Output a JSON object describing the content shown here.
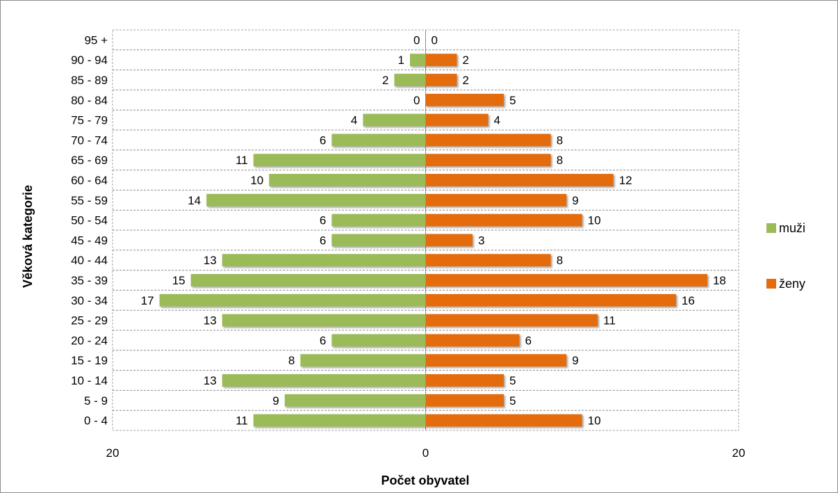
{
  "chart_data": {
    "type": "bar",
    "orientation": "horizontal",
    "layout": "population-pyramid",
    "xlabel": "Počet obyvatel",
    "ylabel": "Věková kategorie",
    "xlim": [
      -20,
      20
    ],
    "xticks": [
      "20",
      "0",
      "20"
    ],
    "grid": true,
    "legend_position": "right",
    "categories": [
      "0 -  4",
      "5 -  9",
      "10 - 14",
      "15 - 19",
      "20 - 24",
      "25 - 29",
      "30 - 34",
      "35 - 39",
      "40 - 44",
      "45 - 49",
      "50 - 54",
      "55 - 59",
      "60 - 64",
      "65 - 69",
      "70 - 74",
      "75 - 79",
      "80 - 84",
      "85 - 89",
      "90 - 94",
      "95 +"
    ],
    "series": [
      {
        "name": "muži",
        "color": "#9bbb59",
        "side": "left",
        "values": [
          11,
          9,
          13,
          8,
          6,
          13,
          17,
          15,
          13,
          6,
          6,
          14,
          10,
          11,
          6,
          4,
          0,
          2,
          1,
          0
        ]
      },
      {
        "name": "ženy",
        "color": "#e46c0a",
        "side": "right",
        "values": [
          10,
          5,
          5,
          9,
          6,
          11,
          16,
          18,
          8,
          3,
          10,
          9,
          12,
          8,
          8,
          4,
          5,
          2,
          2,
          0
        ]
      }
    ]
  }
}
